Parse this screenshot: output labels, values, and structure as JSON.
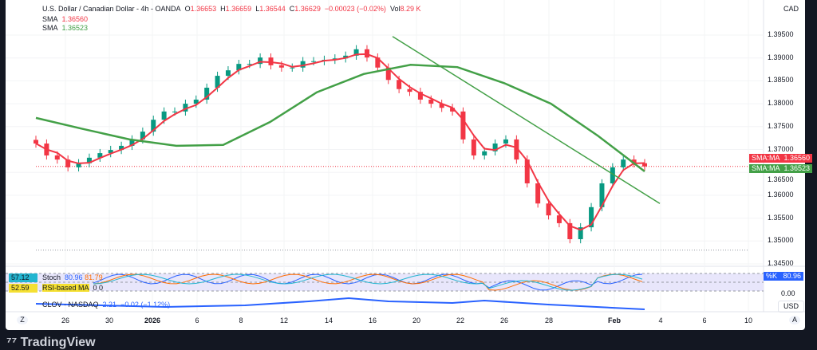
{
  "header": {
    "symbol": "U.S. Dollar / Canadian Dollar - 4h - OANDA",
    "o_label": "O",
    "o": "1.36653",
    "h_label": "H",
    "h": "1.36659",
    "l_label": "L",
    "l": "1.36544",
    "c_label": "C",
    "c": "1.36629",
    "change": "−0.00023 (−0.02%)",
    "vol_label": "Vol",
    "vol": "8.29 K",
    "sma1_label": "SMA",
    "sma1": "1.36560",
    "sma2_label": "SMA",
    "sma2": "1.36523"
  },
  "currency": "CAD",
  "price_tags": [
    {
      "label": "SMA:MA",
      "value": "1.36560",
      "color": "#f23645"
    },
    {
      "label": "SMA:MA",
      "value": "1.36523",
      "color": "#43a047"
    }
  ],
  "indicators": {
    "stoch_value": "57.12",
    "stoch_label": "Stoch",
    "stoch_k": "80.96",
    "stoch_d": "81.79",
    "rsi_value": "52.59",
    "rsi_label": "RSI-based MA",
    "rsi_extra": "0 0",
    "k_tag_label": "%K",
    "k_tag_value": "80.96",
    "zero_label": "0.00",
    "clov_label": "CLOV · NASDAQ",
    "clov_value": "2.21",
    "clov_change": "−0.02 (−1.12%)",
    "usd_label": "USD"
  },
  "x_ticks": [
    "26",
    "30",
    "2026",
    "6",
    "8",
    "12",
    "14",
    "16",
    "20",
    "22",
    "26",
    "28",
    "Feb",
    "4",
    "6",
    "10"
  ],
  "tz_button": "Z",
  "auto_button": "A",
  "brand": "TradingView",
  "chart_data": {
    "type": "candlestick",
    "ylim": [
      1.343,
      1.397
    ],
    "y_ticks": [
      "1.39500",
      "1.39000",
      "1.38500",
      "1.38000",
      "1.37500",
      "1.37000",
      "1.36500",
      "1.36000",
      "1.35500",
      "1.35000",
      "1.34500"
    ],
    "closes": [
      1.3713,
      1.3687,
      1.3678,
      1.3661,
      1.367,
      1.3682,
      1.3692,
      1.3699,
      1.3708,
      1.3722,
      1.3739,
      1.3765,
      1.3783,
      1.3783,
      1.38,
      1.3809,
      1.3835,
      1.3861,
      1.3873,
      1.3887,
      1.3887,
      1.3901,
      1.3884,
      1.3879,
      1.3879,
      1.3893,
      1.3893,
      1.3896,
      1.3899,
      1.3905,
      1.3919,
      1.3901,
      1.3879,
      1.3852,
      1.3832,
      1.3826,
      1.3809,
      1.38,
      1.3791,
      1.3783,
      1.3722,
      1.3687,
      1.3696,
      1.3713,
      1.3722,
      1.3678,
      1.3626,
      1.3582,
      1.3556,
      1.3539,
      1.3504,
      1.353,
      1.3574,
      1.3626,
      1.3661,
      1.3678,
      1.367,
      1.3663
    ],
    "sma_slow": [
      1.3769,
      1.3745,
      1.3722,
      1.3708,
      1.371,
      1.376,
      1.3825,
      1.3865,
      1.3885,
      1.388,
      1.3845,
      1.38,
      1.373,
      1.3652
    ],
    "trendline": [
      1.3947,
      1.3582
    ],
    "last_price": 1.3663,
    "support_line": 1.348,
    "colors": {
      "up": "#089981",
      "down": "#f23645",
      "sma_fast": "#f23645",
      "sma_slow": "#43a047",
      "trend": "#43a047"
    }
  }
}
